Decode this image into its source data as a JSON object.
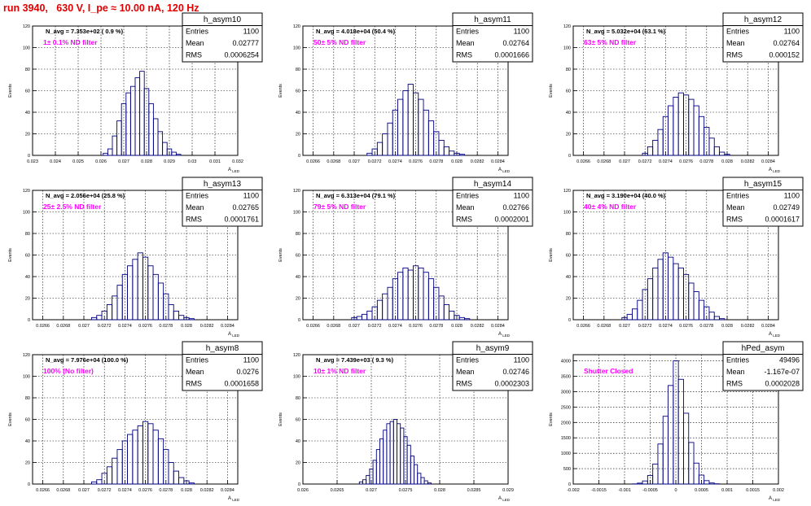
{
  "title": "run 3940,   630 V, I_pe ≈ 10.00 nA, 120 Hz",
  "colors": {
    "title": "#e00000",
    "hist": "#000080",
    "filter_label": "#ff00ff",
    "grid": "#000000"
  },
  "stats_labels": {
    "entries": "Entries",
    "mean": "Mean",
    "rms": "RMS"
  },
  "ylabel": "Events",
  "chart_data": [
    {
      "type": "histogram",
      "name": "h_asym10",
      "nav": "N_avg = 7.353e+02 ( 0.9 %)",
      "filter": "1± 0.1% ND filter",
      "entries": "1100",
      "mean": "0.02777",
      "rms": "0.0006254",
      "xlim": [
        0.023,
        0.032
      ],
      "ylim": [
        0,
        120
      ],
      "xticks": [
        "0.023",
        "0.024",
        "0.025",
        "0.026",
        "0.027",
        "0.028",
        "0.029",
        "0.03",
        "0.031",
        "0.032"
      ],
      "yticks": [
        "0",
        "20",
        "40",
        "60",
        "80",
        "100",
        "120"
      ],
      "xlabel": "A",
      "xlabel_sub": "LED",
      "bins": [
        [
          0.0262,
          2
        ],
        [
          0.0264,
          6
        ],
        [
          0.0266,
          18
        ],
        [
          0.0268,
          32
        ],
        [
          0.027,
          48
        ],
        [
          0.0272,
          58
        ],
        [
          0.0274,
          64
        ],
        [
          0.0276,
          72
        ],
        [
          0.0278,
          78
        ],
        [
          0.028,
          62
        ],
        [
          0.0282,
          48
        ],
        [
          0.0284,
          34
        ],
        [
          0.0286,
          22
        ],
        [
          0.0288,
          12
        ],
        [
          0.029,
          6
        ],
        [
          0.0292,
          3
        ],
        [
          0.0294,
          1
        ]
      ]
    },
    {
      "type": "histogram",
      "name": "h_asym11",
      "nav": "N_avg = 4.018e+04 (50.4 %)",
      "filter": "50± 5% ND filter",
      "entries": "1100",
      "mean": "0.02764",
      "rms": "0.0001666",
      "xlim": [
        0.0265,
        0.0285
      ],
      "ylim": [
        0,
        120
      ],
      "xticks": [
        "0.0266",
        "0.0268",
        "0.027",
        "0.0272",
        "0.0274",
        "0.0276",
        "0.0278",
        "0.028",
        "0.0282",
        "0.0284"
      ],
      "yticks": [
        "0",
        "20",
        "40",
        "60",
        "80",
        "100",
        "120"
      ],
      "xlabel": "A",
      "xlabel_sub": "LED",
      "bins": [
        [
          0.02715,
          2
        ],
        [
          0.0272,
          6
        ],
        [
          0.02725,
          12
        ],
        [
          0.0273,
          20
        ],
        [
          0.02735,
          30
        ],
        [
          0.0274,
          42
        ],
        [
          0.02745,
          52
        ],
        [
          0.0275,
          60
        ],
        [
          0.02755,
          66
        ],
        [
          0.0276,
          58
        ],
        [
          0.02765,
          52
        ],
        [
          0.0277,
          42
        ],
        [
          0.02775,
          32
        ],
        [
          0.0278,
          22
        ],
        [
          0.02785,
          14
        ],
        [
          0.0279,
          8
        ],
        [
          0.02795,
          4
        ],
        [
          0.028,
          2
        ],
        [
          0.02805,
          1
        ]
      ]
    },
    {
      "type": "histogram",
      "name": "h_asym12",
      "nav": "N_avg = 5.032e+04 (63.1 %)",
      "filter": "63± 5% ND filter",
      "entries": "1100",
      "mean": "0.02764",
      "rms": "0.000152",
      "xlim": [
        0.0265,
        0.0285
      ],
      "ylim": [
        0,
        120
      ],
      "xticks": [
        "0.0266",
        "0.0268",
        "0.027",
        "0.0272",
        "0.0274",
        "0.0276",
        "0.0278",
        "0.028",
        "0.0282",
        "0.0284"
      ],
      "yticks": [
        "0",
        "20",
        "40",
        "60",
        "80",
        "100",
        "120"
      ],
      "xlabel": "A",
      "xlabel_sub": "LED",
      "bins": [
        [
          0.0272,
          2
        ],
        [
          0.02725,
          8
        ],
        [
          0.0273,
          14
        ],
        [
          0.02735,
          24
        ],
        [
          0.0274,
          36
        ],
        [
          0.02745,
          46
        ],
        [
          0.0275,
          54
        ],
        [
          0.02755,
          58
        ],
        [
          0.0276,
          56
        ],
        [
          0.02765,
          52
        ],
        [
          0.0277,
          46
        ],
        [
          0.02775,
          36
        ],
        [
          0.0278,
          26
        ],
        [
          0.02785,
          16
        ],
        [
          0.0279,
          8
        ],
        [
          0.02795,
          3
        ],
        [
          0.028,
          1
        ]
      ]
    },
    {
      "type": "histogram",
      "name": "h_asym13",
      "nav": "N_avg = 2.056e+04 (25.8 %)",
      "filter": "25± 2.5% ND filter",
      "entries": "1100",
      "mean": "0.02765",
      "rms": "0.0001761",
      "xlim": [
        0.0265,
        0.0285
      ],
      "ylim": [
        0,
        120
      ],
      "xticks": [
        "0.0266",
        "0.0268",
        "0.027",
        "0.0272",
        "0.0274",
        "0.0276",
        "0.0278",
        "0.028",
        "0.0282",
        "0.0284"
      ],
      "yticks": [
        "0",
        "20",
        "40",
        "60",
        "80",
        "100",
        "120"
      ],
      "xlabel": "A",
      "xlabel_sub": "LED",
      "bins": [
        [
          0.0271,
          2
        ],
        [
          0.02715,
          4
        ],
        [
          0.0272,
          8
        ],
        [
          0.02725,
          14
        ],
        [
          0.0273,
          22
        ],
        [
          0.02735,
          32
        ],
        [
          0.0274,
          42
        ],
        [
          0.02745,
          50
        ],
        [
          0.0275,
          56
        ],
        [
          0.02755,
          62
        ],
        [
          0.0276,
          58
        ],
        [
          0.02765,
          50
        ],
        [
          0.0277,
          42
        ],
        [
          0.02775,
          34
        ],
        [
          0.0278,
          24
        ],
        [
          0.02785,
          14
        ],
        [
          0.0279,
          8
        ],
        [
          0.02795,
          4
        ],
        [
          0.028,
          2
        ],
        [
          0.02805,
          1
        ]
      ]
    },
    {
      "type": "histogram",
      "name": "h_asym14",
      "nav": "N_avg = 6.313e+04 (79.1 %)",
      "filter": "79± 5% ND filter",
      "entries": "1100",
      "mean": "0.02766",
      "rms": "0.0002001",
      "xlim": [
        0.0265,
        0.0285
      ],
      "ylim": [
        0,
        120
      ],
      "xticks": [
        "0.0266",
        "0.0268",
        "0.027",
        "0.0272",
        "0.0274",
        "0.0276",
        "0.0278",
        "0.028",
        "0.0282",
        "0.0284"
      ],
      "yticks": [
        "0",
        "20",
        "40",
        "60",
        "80",
        "100",
        "120"
      ],
      "xlabel": "A",
      "xlabel_sub": "LED",
      "bins": [
        [
          0.027,
          2
        ],
        [
          0.02705,
          3
        ],
        [
          0.0271,
          5
        ],
        [
          0.02715,
          8
        ],
        [
          0.0272,
          12
        ],
        [
          0.02725,
          18
        ],
        [
          0.0273,
          24
        ],
        [
          0.02735,
          30
        ],
        [
          0.0274,
          38
        ],
        [
          0.02745,
          44
        ],
        [
          0.0275,
          48
        ],
        [
          0.02755,
          46
        ],
        [
          0.0276,
          50
        ],
        [
          0.02765,
          48
        ],
        [
          0.0277,
          44
        ],
        [
          0.02775,
          38
        ],
        [
          0.0278,
          30
        ],
        [
          0.02785,
          22
        ],
        [
          0.0279,
          14
        ],
        [
          0.02795,
          8
        ],
        [
          0.028,
          4
        ],
        [
          0.02805,
          2
        ],
        [
          0.0281,
          1
        ]
      ]
    },
    {
      "type": "histogram",
      "name": "h_asym15",
      "nav": "N_avg = 3.190e+04 (40.0 %)",
      "filter": "40± 4% ND filter",
      "entries": "1100",
      "mean": "0.02749",
      "rms": "0.0001617",
      "xlim": [
        0.0265,
        0.0285
      ],
      "ylim": [
        0,
        120
      ],
      "xticks": [
        "0.0266",
        "0.0268",
        "0.027",
        "0.0272",
        "0.0274",
        "0.0276",
        "0.0278",
        "0.028",
        "0.0282",
        "0.0284"
      ],
      "yticks": [
        "0",
        "20",
        "40",
        "60",
        "80",
        "100",
        "120"
      ],
      "xlabel": "A",
      "xlabel_sub": "LED",
      "bins": [
        [
          0.027,
          2
        ],
        [
          0.02705,
          5
        ],
        [
          0.0271,
          10
        ],
        [
          0.02715,
          18
        ],
        [
          0.0272,
          28
        ],
        [
          0.02725,
          38
        ],
        [
          0.0273,
          48
        ],
        [
          0.02735,
          56
        ],
        [
          0.0274,
          62
        ],
        [
          0.02745,
          58
        ],
        [
          0.0275,
          52
        ],
        [
          0.02755,
          48
        ],
        [
          0.0276,
          42
        ],
        [
          0.02765,
          34
        ],
        [
          0.0277,
          26
        ],
        [
          0.02775,
          18
        ],
        [
          0.0278,
          12
        ],
        [
          0.02785,
          7
        ],
        [
          0.0279,
          3
        ],
        [
          0.02795,
          1
        ]
      ]
    },
    {
      "type": "histogram",
      "name": "h_asym8",
      "nav": "N_avg = 7.976e+04 (100.0 %)",
      "filter": "100% (No filter)",
      "entries": "1100",
      "mean": "0.0276",
      "rms": "0.0001658",
      "xlim": [
        0.0265,
        0.0285
      ],
      "ylim": [
        0,
        120
      ],
      "xticks": [
        "0.0266",
        "0.0268",
        "0.027",
        "0.0272",
        "0.0274",
        "0.0276",
        "0.0278",
        "0.028",
        "0.0282",
        "0.0284"
      ],
      "yticks": [
        "0",
        "20",
        "40",
        "60",
        "80",
        "100",
        "120"
      ],
      "xlabel": "A",
      "xlabel_sub": "LED",
      "bins": [
        [
          0.0271,
          2
        ],
        [
          0.02715,
          4
        ],
        [
          0.0272,
          10
        ],
        [
          0.02725,
          16
        ],
        [
          0.0273,
          24
        ],
        [
          0.02735,
          32
        ],
        [
          0.0274,
          40
        ],
        [
          0.02745,
          46
        ],
        [
          0.0275,
          50
        ],
        [
          0.02755,
          54
        ],
        [
          0.0276,
          58
        ],
        [
          0.02765,
          56
        ],
        [
          0.0277,
          50
        ],
        [
          0.02775,
          42
        ],
        [
          0.0278,
          32
        ],
        [
          0.02785,
          20
        ],
        [
          0.0279,
          12
        ],
        [
          0.02795,
          6
        ],
        [
          0.028,
          3
        ],
        [
          0.02805,
          1
        ]
      ]
    },
    {
      "type": "histogram",
      "name": "h_asym9",
      "nav": "N_avg = 7.439e+03 ( 9.3 %)",
      "filter": "10± 1% ND filter",
      "entries": "1100",
      "mean": "0.02746",
      "rms": "0.0002303",
      "xlim": [
        0.026,
        0.029
      ],
      "ylim": [
        0,
        120
      ],
      "xticks": [
        "0.026",
        "0.0265",
        "0.027",
        "0.0275",
        "0.028",
        "0.0285",
        "0.029"
      ],
      "yticks": [
        "0",
        "20",
        "40",
        "60",
        "80",
        "100",
        "120"
      ],
      "xlabel": "A",
      "xlabel_sub": "LED",
      "bins": [
        [
          0.02685,
          2
        ],
        [
          0.0269,
          4
        ],
        [
          0.02695,
          8
        ],
        [
          0.027,
          14
        ],
        [
          0.02705,
          22
        ],
        [
          0.0271,
          32
        ],
        [
          0.02715,
          42
        ],
        [
          0.0272,
          50
        ],
        [
          0.02725,
          56
        ],
        [
          0.0273,
          58
        ],
        [
          0.02735,
          60
        ],
        [
          0.0274,
          56
        ],
        [
          0.02745,
          52
        ],
        [
          0.0275,
          44
        ],
        [
          0.02755,
          36
        ],
        [
          0.0276,
          26
        ],
        [
          0.02765,
          18
        ],
        [
          0.0277,
          10
        ],
        [
          0.02775,
          6
        ],
        [
          0.0278,
          3
        ],
        [
          0.02785,
          1
        ]
      ]
    },
    {
      "type": "histogram",
      "name": "hPed_asym",
      "nav": "",
      "filter": "Shutter Closed",
      "entries": "49496",
      "mean": "-1.167e-07",
      "rms": "0.0002028",
      "xlim": [
        -0.002,
        0.002
      ],
      "ylim": [
        0,
        4200
      ],
      "xticks": [
        "-0.002",
        "-0.0015",
        "-0.001",
        "-0.0005",
        "0",
        "0.0005",
        "0.001",
        "0.0015",
        "0.002"
      ],
      "yticks": [
        "0",
        "500",
        "1000",
        "1500",
        "2000",
        "2500",
        "3000",
        "3500",
        "4000"
      ],
      "xlabel": "A",
      "xlabel_sub": "LED",
      "bins": [
        [
          -0.0008,
          5
        ],
        [
          -0.0007,
          30
        ],
        [
          -0.0006,
          100
        ],
        [
          -0.0005,
          280
        ],
        [
          -0.0004,
          650
        ],
        [
          -0.0003,
          1300
        ],
        [
          -0.0002,
          2200
        ],
        [
          -0.0001,
          3200
        ],
        [
          0,
          4000
        ],
        [
          0.0001,
          3400
        ],
        [
          0.0002,
          2300
        ],
        [
          0.0003,
          1350
        ],
        [
          0.0004,
          680
        ],
        [
          0.0005,
          290
        ],
        [
          0.0006,
          110
        ],
        [
          0.0007,
          35
        ],
        [
          0.0008,
          8
        ]
      ]
    }
  ]
}
